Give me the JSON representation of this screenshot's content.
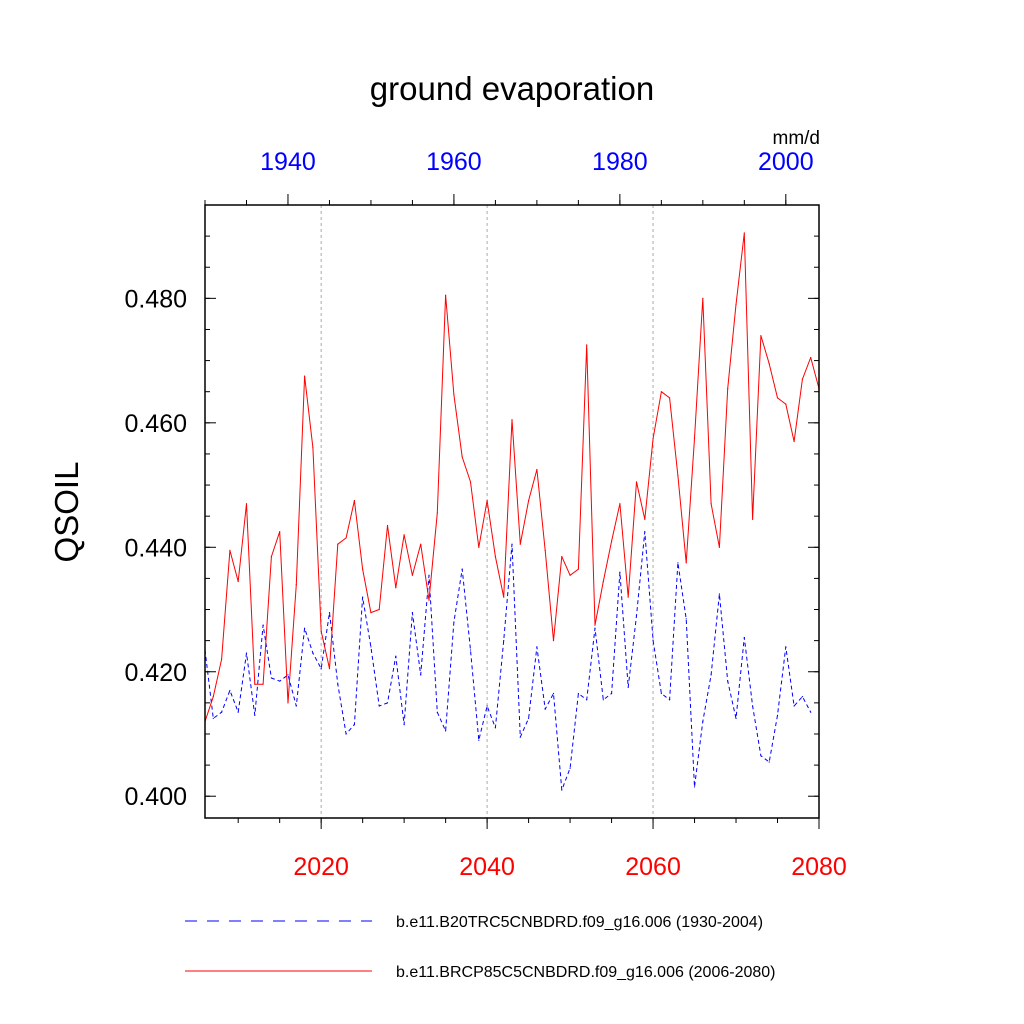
{
  "chart_data": {
    "type": "line",
    "title": "ground evaporation",
    "ylabel": "QSOIL",
    "units": "mm/d",
    "ylim": [
      0.3965,
      0.495
    ],
    "yticks": [
      "0.400",
      "0.420",
      "0.440",
      "0.460",
      "0.480"
    ],
    "bottom_axis": {
      "xlim": [
        2006,
        2080
      ],
      "ticks": [
        "2020",
        "2040",
        "2060",
        "2080"
      ],
      "color": "#ff0000"
    },
    "top_axis": {
      "xlim": [
        1930,
        2004
      ],
      "ticks": [
        "1940",
        "1960",
        "1980",
        "2000"
      ],
      "color": "#0000ff"
    },
    "vertical_gridlines_bottom": [
      2020,
      2040,
      2060
    ],
    "series": [
      {
        "name": "b.e11.B20TRC5CNBDRD.f09_g16.006 (1930-2004)",
        "axis": "top",
        "color": "#0000ff",
        "dash": "dashed",
        "start": 1930,
        "values": [
          0.4235,
          0.4125,
          0.4135,
          0.417,
          0.4135,
          0.423,
          0.413,
          0.4275,
          0.419,
          0.4185,
          0.4195,
          0.4145,
          0.427,
          0.423,
          0.4205,
          0.4295,
          0.418,
          0.41,
          0.4115,
          0.432,
          0.424,
          0.4145,
          0.415,
          0.4225,
          0.4115,
          0.4295,
          0.4195,
          0.4355,
          0.4135,
          0.4105,
          0.428,
          0.4365,
          0.4235,
          0.409,
          0.4145,
          0.411,
          0.425,
          0.4405,
          0.4095,
          0.4125,
          0.424,
          0.414,
          0.4165,
          0.401,
          0.4045,
          0.4165,
          0.4155,
          0.427,
          0.4155,
          0.4165,
          0.436,
          0.4175,
          0.429,
          0.4425,
          0.425,
          0.4165,
          0.4155,
          0.4375,
          0.4285,
          0.4015,
          0.412,
          0.4195,
          0.4325,
          0.4185,
          0.4125,
          0.4255,
          0.4145,
          0.4065,
          0.4055,
          0.413,
          0.424,
          0.4145,
          0.416,
          0.4135
        ]
      },
      {
        "name": "b.e11.BRCP85C5CNBDRD.f09_g16.006 (2006-2080)",
        "axis": "bottom",
        "color": "#ff0000",
        "dash": "solid",
        "start": 2006,
        "values": [
          0.412,
          0.416,
          0.422,
          0.4395,
          0.4345,
          0.447,
          0.418,
          0.418,
          0.4385,
          0.4425,
          0.415,
          0.434,
          0.4675,
          0.456,
          0.4265,
          0.4205,
          0.4405,
          0.4415,
          0.4475,
          0.4365,
          0.4295,
          0.43,
          0.4435,
          0.4335,
          0.442,
          0.4355,
          0.4405,
          0.4315,
          0.4455,
          0.4805,
          0.4645,
          0.4545,
          0.4505,
          0.44,
          0.4475,
          0.4385,
          0.432,
          0.4605,
          0.4405,
          0.4475,
          0.4525,
          0.4395,
          0.425,
          0.4385,
          0.4355,
          0.4365,
          0.4725,
          0.4275,
          0.4345,
          0.441,
          0.447,
          0.432,
          0.4505,
          0.4445,
          0.4575,
          0.465,
          0.464,
          0.4515,
          0.4375,
          0.4575,
          0.48,
          0.447,
          0.44,
          0.4655,
          0.479,
          0.4905,
          0.4445,
          0.474,
          0.4695,
          0.464,
          0.463,
          0.457,
          0.467,
          0.4705,
          0.4655
        ]
      }
    ]
  }
}
